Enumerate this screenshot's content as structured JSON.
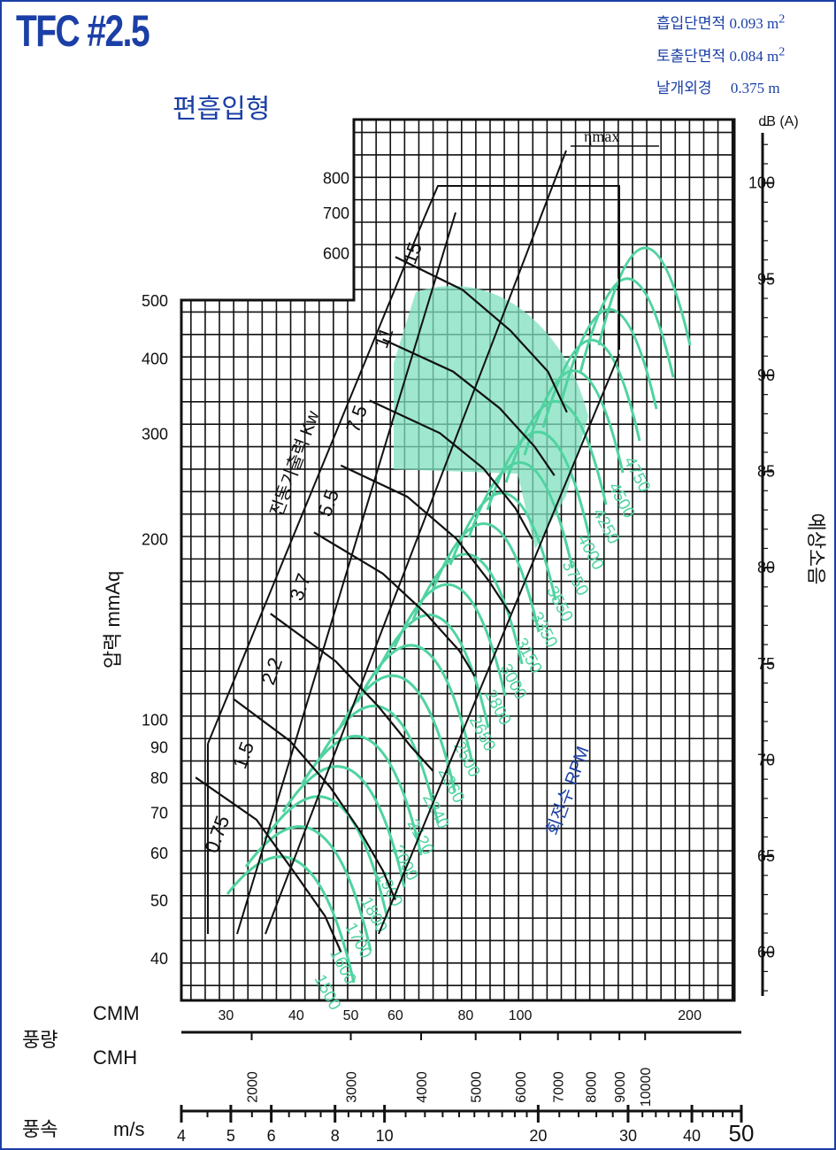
{
  "header": {
    "title": "TFC #2.5",
    "subtitle": "편흡입형",
    "specs": [
      {
        "label": "흡입단면적",
        "value": "0.093 m",
        "sup": "2"
      },
      {
        "label": "토출단면적",
        "value": "0.084 m",
        "sup": "2"
      },
      {
        "label": "날개외경",
        "value": "0.375 m",
        "sup": ""
      }
    ]
  },
  "colors": {
    "accent_blue": "#1b3fa6",
    "rpm_green": "#4fd3a0",
    "efficiency_fill": "#7fe0bf",
    "grid": "#111111"
  },
  "chart_data": {
    "type": "line",
    "title": "TFC #2.5",
    "xscale": "log",
    "yscale": "log",
    "x_axis": {
      "unit": "CMM",
      "ticks": [
        30,
        40,
        50,
        60,
        80,
        100,
        200
      ],
      "range": [
        25,
        240
      ]
    },
    "y_axis": {
      "label": "압력 mmAq",
      "ticks": [
        40,
        50,
        60,
        70,
        80,
        90,
        100,
        200,
        300,
        400,
        500,
        600,
        700,
        800
      ],
      "range": [
        34,
        1000
      ]
    },
    "secondary_y": {
      "label": "예상소음",
      "unit": "dB (A)",
      "ticks": [
        60,
        65,
        70,
        75,
        80,
        85,
        90,
        95,
        100
      ],
      "range": [
        57.5,
        103.3
      ]
    },
    "flow_cmh_ticks": [
      "2000",
      "3000",
      "4000",
      "5000",
      "6000",
      "7000",
      "8000",
      "9000",
      "10000"
    ],
    "velocity_label": "m/s",
    "velocity_ticks": [
      "4",
      "5",
      "6",
      "8",
      "10",
      "20",
      "30",
      "40",
      "50"
    ],
    "bottom_labels": {
      "flow": "풍량",
      "cmm": "CMM",
      "cmh": "CMH",
      "velocity": "풍속"
    },
    "motor_power_label": "전동기출력 Kw",
    "motor_power_kw": [
      "0.75",
      "1.5",
      "2.2",
      "3.7",
      "5.5",
      "7.5",
      "11",
      "15"
    ],
    "rpm_label": "회전수 RPM",
    "rpm_values": [
      1500,
      1600,
      1700,
      1800,
      1900,
      2000,
      2120,
      2240,
      2360,
      2500,
      2650,
      2800,
      3000,
      3150,
      3350,
      3550,
      3750,
      4000,
      4250,
      4500,
      4750
    ],
    "efficiency_label": "ηmax",
    "power_curves": [
      {
        "kw": "0.75",
        "points": [
          [
            26.5,
            80
          ],
          [
            34,
            68
          ],
          [
            40,
            55
          ],
          [
            45,
            47
          ],
          [
            48,
            41
          ]
        ]
      },
      {
        "kw": "1.5",
        "points": [
          [
            31,
            108
          ],
          [
            39,
            92
          ],
          [
            46,
            77
          ],
          [
            52,
            65
          ],
          [
            57,
            56
          ],
          [
            60,
            50
          ]
        ]
      },
      {
        "kw": "2.2",
        "points": [
          [
            36,
            150
          ],
          [
            47,
            125
          ],
          [
            56,
            105
          ],
          [
            64,
            90
          ],
          [
            70,
            82
          ]
        ]
      },
      {
        "kw": "3.7",
        "points": [
          [
            43,
            205
          ],
          [
            57,
            175
          ],
          [
            68,
            150
          ],
          [
            78,
            130
          ],
          [
            83,
            118
          ]
        ]
      },
      {
        "kw": "5.5",
        "points": [
          [
            48,
            265
          ],
          [
            63,
            235
          ],
          [
            77,
            200
          ],
          [
            88,
            170
          ],
          [
            96,
            150
          ]
        ]
      },
      {
        "kw": "7.5",
        "points": [
          [
            54,
            340
          ],
          [
            72,
            300
          ],
          [
            86,
            262
          ],
          [
            98,
            225
          ],
          [
            105,
            200
          ]
        ]
      },
      {
        "kw": "11",
        "points": [
          [
            57,
            430
          ],
          [
            76,
            380
          ],
          [
            92,
            330
          ],
          [
            106,
            285
          ],
          [
            115,
            255
          ]
        ]
      },
      {
        "kw": "15",
        "points": [
          [
            60,
            590
          ],
          [
            79,
            520
          ],
          [
            96,
            445
          ],
          [
            112,
            380
          ],
          [
            121,
            325
          ]
        ]
      }
    ]
  }
}
